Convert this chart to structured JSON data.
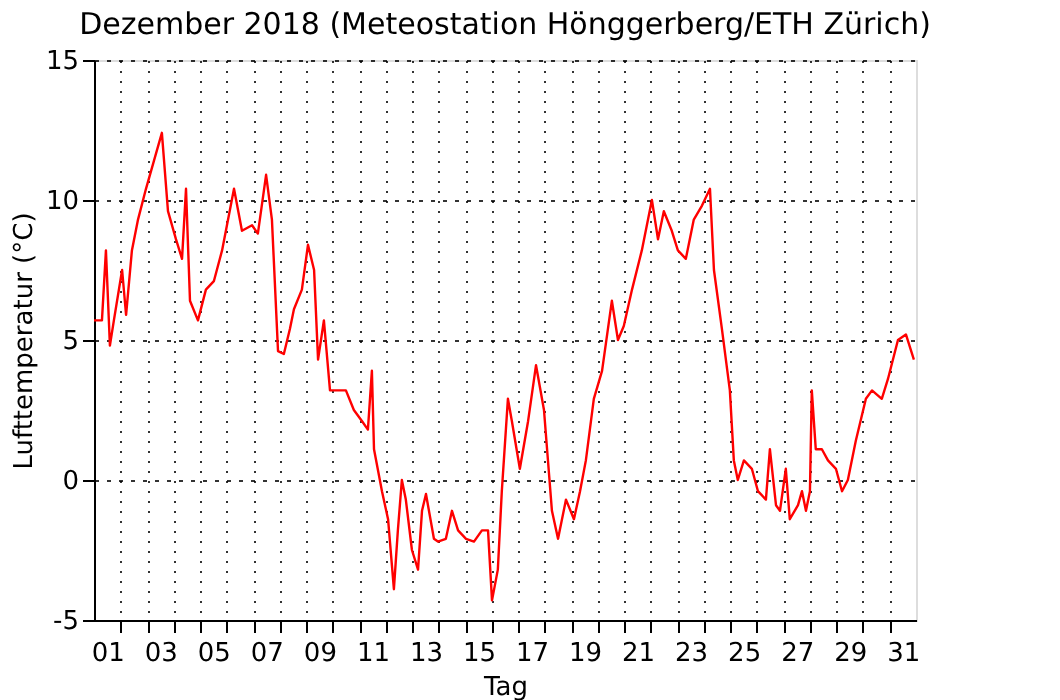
{
  "chart_data": {
    "type": "line",
    "title": "Dezember 2018  (Meteostation Hönggerberg/ETH Zürich)",
    "xlabel": "Tag",
    "ylabel": "Lufttemperatur (°C)",
    "xlim": [
      1,
      32
    ],
    "ylim": [
      -5,
      15
    ],
    "yticks": [
      -5,
      0,
      5,
      10,
      15
    ],
    "xticks": [
      {
        "value": 1.5,
        "label": "01"
      },
      {
        "value": 2,
        "label": null
      },
      {
        "value": 3,
        "label": null
      },
      {
        "value": 3.5,
        "label": "03"
      },
      {
        "value": 4,
        "label": null
      },
      {
        "value": 5,
        "label": null
      },
      {
        "value": 5.5,
        "label": "05"
      },
      {
        "value": 6,
        "label": null
      },
      {
        "value": 7,
        "label": null
      },
      {
        "value": 7.5,
        "label": "07"
      },
      {
        "value": 8,
        "label": null
      },
      {
        "value": 9,
        "label": null
      },
      {
        "value": 9.5,
        "label": "09"
      },
      {
        "value": 10,
        "label": null
      },
      {
        "value": 11,
        "label": null
      },
      {
        "value": 11.5,
        "label": "11"
      },
      {
        "value": 12,
        "label": null
      },
      {
        "value": 13,
        "label": null
      },
      {
        "value": 13.5,
        "label": "13"
      },
      {
        "value": 14,
        "label": null
      },
      {
        "value": 15,
        "label": null
      },
      {
        "value": 15.5,
        "label": "15"
      },
      {
        "value": 16,
        "label": null
      },
      {
        "value": 17,
        "label": null
      },
      {
        "value": 17.5,
        "label": "17"
      },
      {
        "value": 18,
        "label": null
      },
      {
        "value": 19,
        "label": null
      },
      {
        "value": 19.5,
        "label": "19"
      },
      {
        "value": 20,
        "label": null
      },
      {
        "value": 21,
        "label": null
      },
      {
        "value": 21.5,
        "label": "21"
      },
      {
        "value": 22,
        "label": null
      },
      {
        "value": 23,
        "label": null
      },
      {
        "value": 23.5,
        "label": "23"
      },
      {
        "value": 24,
        "label": null
      },
      {
        "value": 25,
        "label": null
      },
      {
        "value": 25.5,
        "label": "25"
      },
      {
        "value": 26,
        "label": null
      },
      {
        "value": 27,
        "label": null
      },
      {
        "value": 27.5,
        "label": "27"
      },
      {
        "value": 28,
        "label": null
      },
      {
        "value": 29,
        "label": null
      },
      {
        "value": 29.5,
        "label": "29"
      },
      {
        "value": 30,
        "label": null
      },
      {
        "value": 31,
        "label": null
      },
      {
        "value": 31.5,
        "label": "31"
      }
    ],
    "grid": true,
    "line_style": "solid",
    "marker": "none",
    "legend": false,
    "x": [
      1.0,
      1.3,
      1.45,
      1.6,
      1.75,
      2.06,
      2.21,
      2.43,
      2.66,
      2.96,
      3.26,
      3.56,
      3.79,
      4.09,
      4.32,
      4.47,
      4.62,
      4.92,
      5.22,
      5.52,
      5.83,
      6.28,
      6.58,
      6.96,
      7.18,
      7.49,
      7.71,
      7.94,
      8.16,
      8.39,
      8.54,
      8.84,
      9.07,
      9.3,
      9.45,
      9.67,
      9.9,
      10.2,
      10.5,
      10.8,
      11.11,
      11.33,
      11.48,
      11.56,
      11.86,
      12.09,
      12.31,
      12.46,
      12.61,
      12.76,
      12.99,
      13.22,
      13.37,
      13.52,
      13.82,
      13.97,
      14.27,
      14.5,
      14.73,
      15.03,
      15.33,
      15.63,
      15.86,
      16.01,
      16.23,
      16.38,
      16.61,
      16.76,
      17.06,
      17.37,
      17.67,
      17.97,
      18.27,
      18.5,
      18.8,
      19.1,
      19.33,
      19.55,
      19.85,
      20.16,
      20.53,
      20.76,
      20.98,
      21.29,
      21.66,
      22.04,
      22.27,
      22.49,
      22.79,
      23.02,
      23.32,
      23.62,
      23.93,
      24.23,
      24.38,
      24.68,
      24.98,
      25.13,
      25.28,
      25.51,
      25.81,
      26.04,
      26.34,
      26.49,
      26.72,
      26.87,
      27.09,
      27.24,
      27.55,
      27.7,
      27.85,
      28.0,
      28.07,
      28.22,
      28.45,
      28.68,
      28.98,
      29.21,
      29.43,
      29.73,
      30.11,
      30.34,
      30.71,
      30.94,
      31.32,
      31.62,
      31.92
    ],
    "series": [
      {
        "color": "#ff0000",
        "values": [
          5.7,
          5.7,
          8.2,
          4.8,
          5.7,
          7.5,
          5.9,
          8.2,
          9.3,
          10.4,
          11.4,
          12.4,
          9.6,
          8.6,
          7.9,
          10.4,
          6.4,
          5.7,
          6.8,
          7.1,
          8.2,
          10.4,
          8.9,
          9.1,
          8.8,
          10.9,
          9.3,
          4.6,
          4.5,
          5.4,
          6.1,
          6.8,
          8.4,
          7.5,
          4.3,
          5.7,
          3.2,
          3.2,
          3.2,
          2.5,
          2.1,
          1.8,
          3.9,
          1.1,
          -0.4,
          -1.4,
          -3.9,
          -1.8,
          0.0,
          -0.7,
          -2.5,
          -3.2,
          -1.1,
          -0.5,
          -2.1,
          -2.2,
          -2.1,
          -1.1,
          -1.8,
          -2.1,
          -2.2,
          -1.8,
          -1.8,
          -4.3,
          -3.2,
          -0.4,
          2.9,
          2.1,
          0.4,
          2.1,
          4.1,
          2.5,
          -1.1,
          -2.1,
          -0.7,
          -1.4,
          -0.4,
          0.7,
          2.9,
          3.9,
          6.4,
          5.0,
          5.5,
          6.8,
          8.2,
          10.0,
          8.6,
          9.6,
          8.9,
          8.2,
          7.9,
          9.3,
          9.8,
          10.4,
          7.5,
          5.4,
          3.2,
          0.7,
          0.0,
          0.7,
          0.4,
          -0.4,
          -0.7,
          1.1,
          -0.9,
          -1.1,
          0.4,
          -1.4,
          -0.9,
          -0.4,
          -1.1,
          -0.4,
          3.2,
          1.1,
          1.1,
          0.7,
          0.4,
          -0.4,
          0.0,
          1.4,
          2.9,
          3.2,
          2.9,
          3.6,
          5.0,
          5.2,
          4.3
        ]
      }
    ]
  }
}
